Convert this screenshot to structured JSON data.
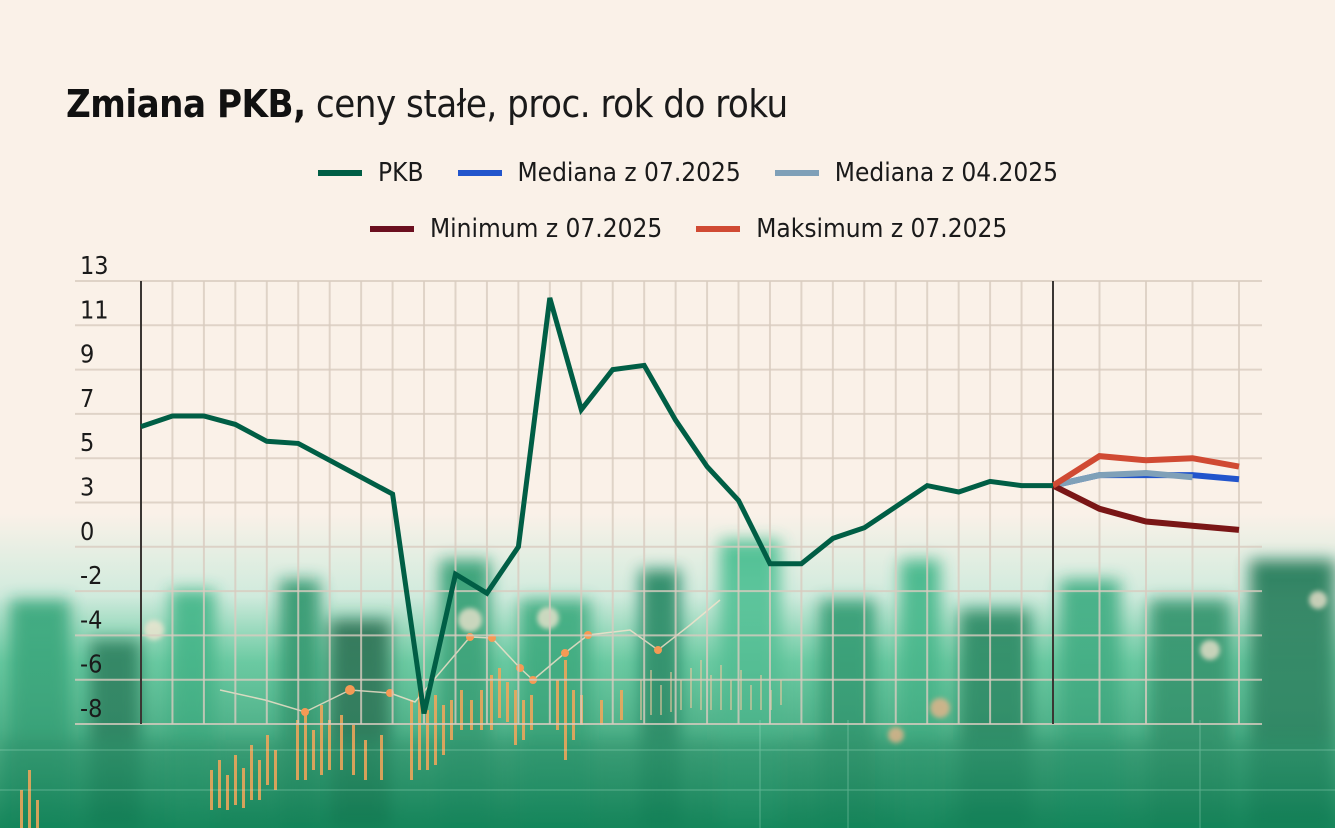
{
  "header": {
    "title_bold": "Zmiana PKB,",
    "title_rest": " ceny stałe, proc. rok do roku"
  },
  "legend": {
    "row1": [
      {
        "label": "PKB",
        "color": "#005E45"
      },
      {
        "label": "Mediana z 07.2025",
        "color": "#2255CC"
      },
      {
        "label": "Mediana z 04.2025",
        "color": "#7FA0B8"
      }
    ],
    "row2": [
      {
        "label": "Minimum z 07.2025",
        "color": "#6B0F1F"
      },
      {
        "label": "Maksimum z 07.2025",
        "color": "#D04A33"
      }
    ]
  },
  "colors": {
    "background": "#FAF1E8",
    "grid": "#D9CCC0",
    "axis": "#3A3633",
    "pkb": "#005E45",
    "mediana_07": "#2255CC",
    "mediana_04": "#7FA0B8",
    "minimum_07": "#7A1616",
    "maksimum_07": "#D04A33",
    "photo_green": "#2FB07F",
    "photo_orange": "#F5A75A"
  },
  "chart_data": {
    "type": "line",
    "title": "Zmiana PKB, ceny stałe, proc. rok do roku",
    "xlabel": "",
    "ylabel": "",
    "y_tick_labels": [
      "13",
      "11",
      "9",
      "7",
      "5",
      "3",
      "0",
      "-2",
      "-4",
      "-6",
      "-8"
    ],
    "ylim": [
      -8,
      13
    ],
    "grid": true,
    "legend_position": "top",
    "x_index_note": "30 historical points (index 0-29) then 4 forecast points (index 30-33); forecast starts from last PKB point",
    "series": [
      {
        "name": "PKB",
        "x": [
          0,
          1,
          2,
          3,
          4,
          5,
          6,
          7,
          8,
          9,
          10,
          11,
          12,
          13,
          14,
          15,
          16,
          17,
          18,
          19,
          20,
          21,
          22,
          23,
          24,
          25,
          26,
          27,
          28,
          29
        ],
        "values": [
          6.1,
          6.6,
          6.6,
          6.2,
          5.4,
          5.3,
          4.5,
          3.7,
          2.9,
          -7.5,
          -0.9,
          -1.8,
          0.4,
          12.2,
          6.9,
          8.8,
          9.0,
          6.4,
          4.2,
          2.6,
          -0.4,
          -0.4,
          0.8,
          1.3,
          2.3,
          3.3,
          3.0,
          3.5,
          3.3,
          3.3
        ]
      },
      {
        "name": "Mediana z 07.2025",
        "x": [
          29,
          30,
          31,
          32,
          33
        ],
        "values": [
          3.3,
          3.8,
          3.8,
          3.8,
          3.6
        ]
      },
      {
        "name": "Mediana z 04.2025",
        "x": [
          29,
          30,
          31,
          32
        ],
        "values": [
          3.3,
          3.8,
          3.9,
          3.7
        ]
      },
      {
        "name": "Minimum z 07.2025",
        "x": [
          29,
          30,
          31,
          32,
          33
        ],
        "values": [
          3.3,
          2.2,
          1.6,
          1.4,
          1.2
        ]
      },
      {
        "name": "Maksimum z 07.2025",
        "x": [
          29,
          30,
          31,
          32,
          33
        ],
        "values": [
          3.3,
          4.7,
          4.5,
          4.6,
          4.2
        ]
      }
    ]
  }
}
